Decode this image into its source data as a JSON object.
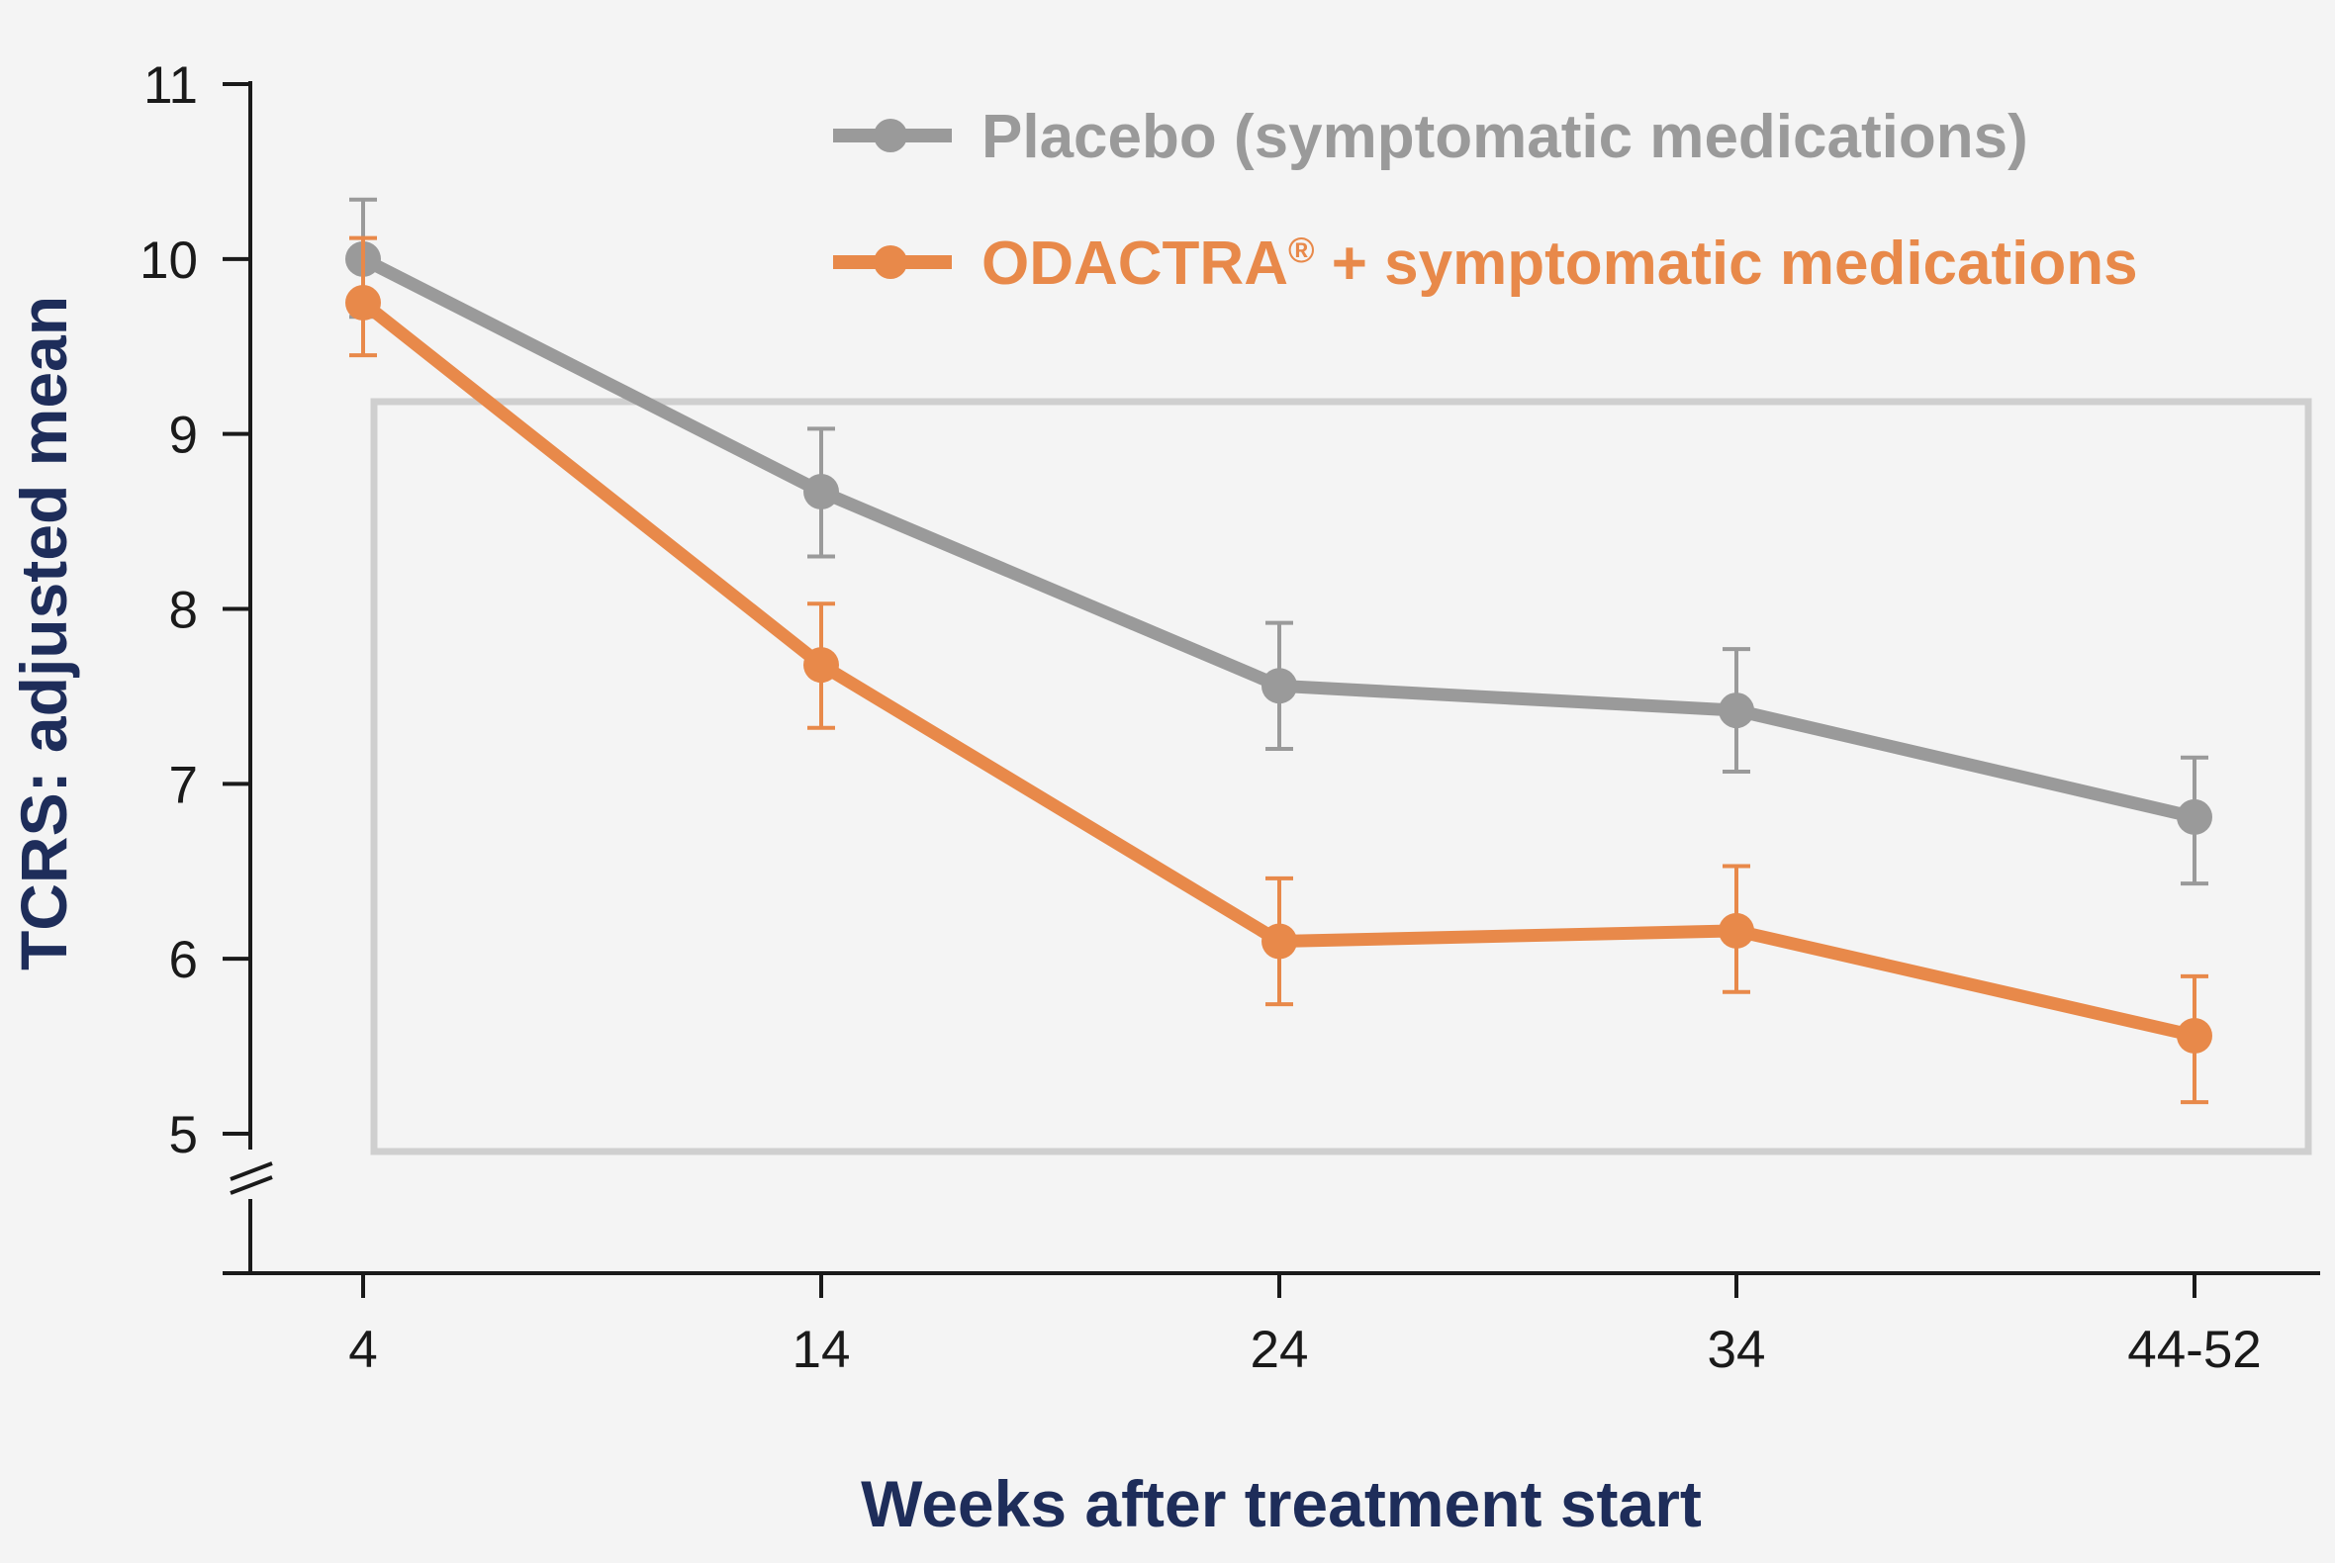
{
  "chart_data": {
    "type": "line",
    "title": "",
    "xlabel": "Weeks after treatment start",
    "ylabel": "TCRS: adjusted mean",
    "categories": [
      "4",
      "14",
      "24",
      "34",
      "44-52"
    ],
    "ylim": [
      5,
      11
    ],
    "yticks": [
      5,
      6,
      7,
      8,
      9,
      10,
      11
    ],
    "axis_break": true,
    "highlight_box": true,
    "grid": false,
    "legend_position": "top-right",
    "series": [
      {
        "name": "Placebo (symptomatic medications)",
        "name_main": "Placebo (symptomatic medications)",
        "name_mark": "",
        "name_suffix": "",
        "color": "#9a9a9a",
        "values": [
          10.0,
          8.67,
          7.56,
          7.42,
          6.81
        ],
        "error_low": [
          9.67,
          8.3,
          7.2,
          7.07,
          6.43
        ],
        "error_high": [
          10.34,
          9.03,
          7.92,
          7.77,
          7.15
        ]
      },
      {
        "name": "ODACTRA® + symptomatic medications",
        "name_main": "ODACTRA",
        "name_mark": "®",
        "name_suffix": " + symptomatic medications",
        "color": "#e8894a",
        "values": [
          9.75,
          7.68,
          6.1,
          6.16,
          5.56
        ],
        "error_low": [
          9.45,
          7.32,
          5.74,
          5.81,
          5.18
        ],
        "error_high": [
          10.12,
          8.03,
          6.46,
          6.53,
          5.9
        ]
      }
    ]
  },
  "colors": {
    "background": "#f4f4f4",
    "axis": "#1a1a1a",
    "highlight_box": "#cfcfcf",
    "axis_title": "#1e2d5a"
  }
}
